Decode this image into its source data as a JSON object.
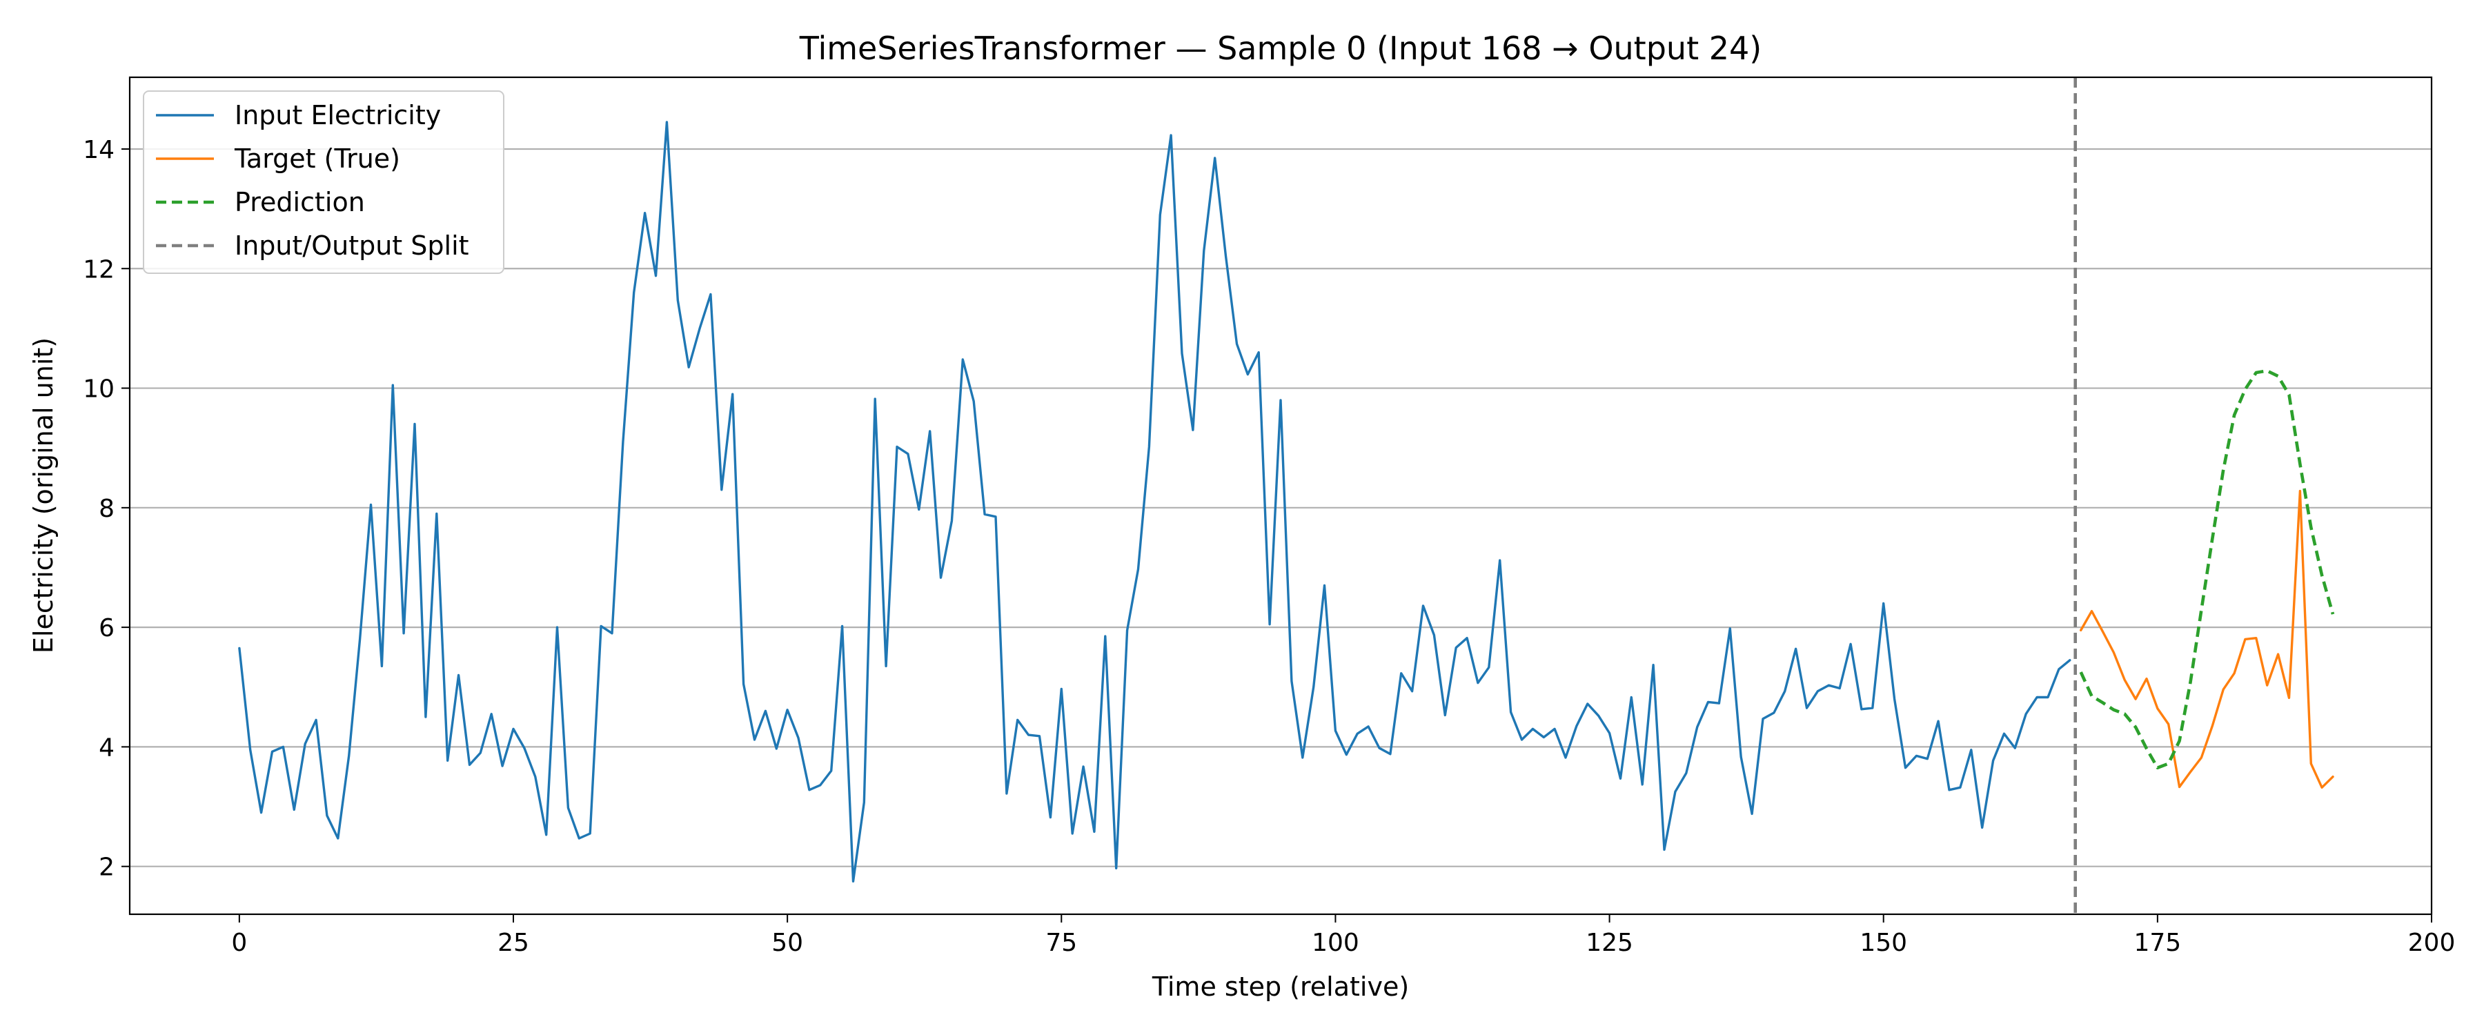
{
  "chart_data": {
    "type": "line",
    "title": "TimeSeriesTransformer — Sample 0 (Input 168 → Output 24)",
    "xlabel": "Time step (relative)",
    "ylabel": "Electricity (original unit)",
    "xlim": [
      -10,
      200
    ],
    "ylim": [
      1.2,
      15.2
    ],
    "xticks": [
      0,
      25,
      50,
      75,
      100,
      125,
      150,
      175,
      200
    ],
    "yticks": [
      2,
      4,
      6,
      8,
      10,
      12,
      14
    ],
    "grid": "horizontal",
    "legend_position": "top-left",
    "split_x": 167.5,
    "series": [
      {
        "name": "Input Electricity",
        "color": "#1f77b4",
        "style": "solid",
        "x_start": 0,
        "values": [
          5.65,
          3.95,
          2.9,
          3.92,
          4.0,
          2.95,
          4.05,
          4.45,
          2.85,
          2.47,
          3.85,
          5.8,
          8.05,
          5.35,
          10.05,
          5.9,
          9.4,
          4.5,
          7.9,
          3.77,
          5.2,
          3.7,
          3.9,
          4.55,
          3.68,
          4.3,
          3.98,
          3.5,
          2.53,
          6.0,
          2.98,
          2.47,
          2.55,
          6.02,
          5.9,
          9.1,
          11.6,
          12.93,
          11.88,
          14.45,
          11.47,
          10.35,
          11.0,
          11.57,
          8.3,
          9.9,
          5.05,
          4.12,
          4.6,
          3.97,
          4.62,
          4.15,
          3.28,
          3.36,
          3.6,
          6.02,
          1.75,
          3.07,
          9.82,
          5.35,
          9.02,
          8.9,
          7.97,
          9.28,
          6.83,
          7.78,
          10.48,
          9.78,
          7.89,
          7.85,
          3.22,
          4.45,
          4.2,
          4.18,
          2.82,
          4.97,
          2.55,
          3.67,
          2.58,
          5.85,
          1.97,
          5.95,
          6.97,
          9.02,
          12.9,
          14.23,
          10.58,
          9.3,
          12.3,
          13.85,
          12.2,
          10.74,
          10.23,
          10.6,
          6.05,
          9.8,
          5.1,
          3.82,
          5.0,
          6.7,
          4.27,
          3.87,
          4.22,
          4.34,
          3.98,
          3.88,
          5.23,
          4.93,
          6.36,
          5.87,
          4.53,
          5.66,
          5.82,
          5.07,
          5.33,
          7.12,
          4.58,
          4.12,
          4.3,
          4.16,
          4.3,
          3.82,
          4.35,
          4.72,
          4.52,
          4.23,
          3.47,
          4.83,
          3.37,
          5.37,
          2.28,
          3.25,
          3.56,
          4.33,
          4.75,
          4.73,
          5.98,
          3.83,
          2.88,
          4.47,
          4.57,
          4.93,
          5.64,
          4.65,
          4.93,
          5.03,
          4.98,
          5.72,
          4.63,
          4.65,
          6.4,
          4.8,
          3.65,
          3.85,
          3.8,
          4.43,
          3.28,
          3.32,
          3.95,
          2.65,
          3.77,
          4.22,
          3.98,
          4.55,
          4.83,
          4.83,
          5.3,
          5.45
        ]
      },
      {
        "name": "Target (True)",
        "color": "#ff7f0e",
        "style": "solid",
        "x_start": 168,
        "values": [
          5.95,
          6.27,
          5.93,
          5.58,
          5.12,
          4.8,
          5.14,
          4.64,
          4.38,
          3.33,
          3.58,
          3.82,
          4.35,
          4.96,
          5.23,
          5.8,
          5.82,
          5.03,
          5.55,
          4.82,
          8.28,
          3.72,
          3.32,
          3.5
        ]
      },
      {
        "name": "Prediction",
        "color": "#2ca02c",
        "style": "dashed",
        "x_start": 168,
        "values": [
          5.25,
          4.85,
          4.74,
          4.62,
          4.55,
          4.33,
          3.97,
          3.65,
          3.72,
          4.1,
          5.08,
          6.29,
          7.48,
          8.63,
          9.55,
          9.98,
          10.26,
          10.29,
          10.2,
          9.89,
          8.73,
          7.67,
          6.87,
          6.22
        ]
      }
    ],
    "reference_line": {
      "name": "Input/Output Split",
      "color": "#7f7f7f",
      "style": "dashed"
    }
  }
}
